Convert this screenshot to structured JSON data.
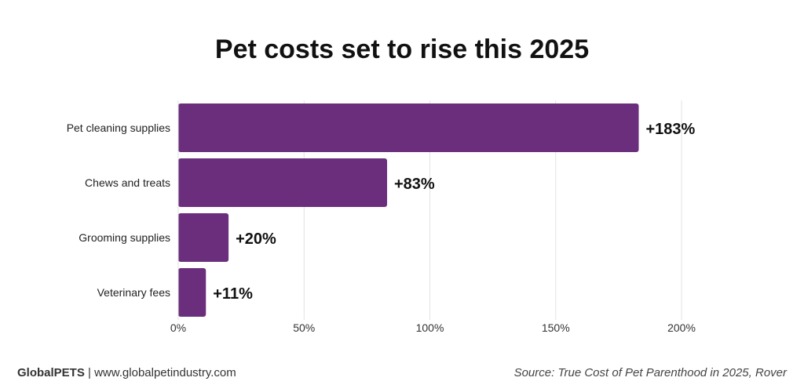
{
  "header": {
    "title": "Pet costs set to rise this 2025"
  },
  "footer": {
    "brand": "GlobalPETS",
    "separator": " | ",
    "url": "www.globalpetindustry.com",
    "source": "Source: True Cost of Pet Parenthood in 2025, Rover"
  },
  "colors": {
    "bar": "#6a2e7d",
    "grid": "#e2e2e2",
    "text": "#111111"
  },
  "chart_data": {
    "type": "bar",
    "orientation": "horizontal",
    "title": "Pet costs set to rise this 2025",
    "categories": [
      "Pet cleaning supplies",
      "Chews and treats",
      "Grooming supplies",
      "Veterinary fees"
    ],
    "values": [
      183,
      83,
      20,
      11
    ],
    "data_labels": [
      "+183%",
      "+83%",
      "+20%",
      "+11%"
    ],
    "unit": "%",
    "xlim": [
      0,
      200
    ],
    "x_ticks": [
      0,
      50,
      100,
      150,
      200
    ],
    "x_tick_labels": [
      "0%",
      "50%",
      "100%",
      "150%",
      "200%"
    ],
    "xlabel": "",
    "ylabel": "",
    "grid": "vertical"
  }
}
